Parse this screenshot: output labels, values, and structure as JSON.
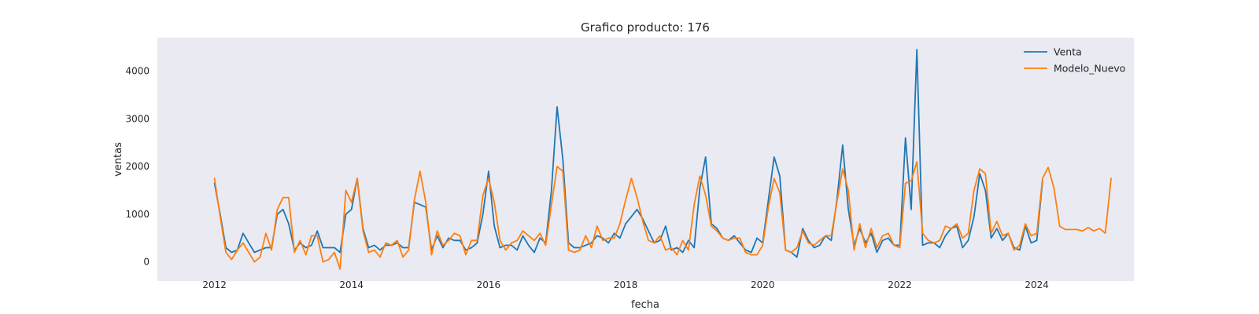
{
  "chart_data": {
    "type": "line",
    "title": "Grafico producto: 176",
    "xlabel": "fecha",
    "ylabel": "ventas",
    "xlim": [
      "2011-03",
      "2025-06"
    ],
    "ylim": [
      -400,
      4700
    ],
    "x_ticks": [
      "2012",
      "2014",
      "2016",
      "2018",
      "2020",
      "2022",
      "2024"
    ],
    "y_ticks": [
      0,
      1000,
      2000,
      3000,
      4000
    ],
    "grid": false,
    "legend_position": "top-right",
    "background": "#eaeaf2",
    "series": [
      {
        "name": "Venta",
        "color": "#1f77b4",
        "start": "2012-01",
        "values": [
          1650,
          1000,
          300,
          200,
          250,
          600,
          400,
          200,
          250,
          300,
          300,
          1000,
          1100,
          800,
          250,
          400,
          300,
          350,
          650,
          300,
          300,
          300,
          200,
          1000,
          1100,
          1750,
          700,
          300,
          350,
          250,
          350,
          350,
          400,
          300,
          300,
          1250,
          1200,
          1150,
          250,
          550,
          300,
          500,
          450,
          450,
          250,
          300,
          400,
          1000,
          1900,
          750,
          300,
          350,
          350,
          250,
          550,
          350,
          200,
          500,
          400,
          1500,
          3250,
          2150,
          400,
          300,
          300,
          350,
          400,
          550,
          500,
          400,
          600,
          500,
          800,
          950,
          1100,
          900,
          650,
          400,
          450,
          750,
          250,
          300,
          200,
          450,
          300,
          1550,
          2200,
          800,
          700,
          500,
          450,
          550,
          400,
          250,
          200,
          500,
          400,
          1300,
          2200,
          1800,
          250,
          200,
          100,
          700,
          450,
          300,
          350,
          550,
          450,
          1300,
          2450,
          1100,
          350,
          700,
          400,
          600,
          200,
          450,
          500,
          350,
          350,
          2600,
          1100,
          4450,
          350,
          400,
          400,
          300,
          550,
          700,
          750,
          300,
          450,
          950,
          1850,
          1500,
          500,
          700,
          450,
          600,
          300,
          250,
          750,
          400,
          450,
          1700
        ]
      },
      {
        "name": "Modelo_Nuevo",
        "color": "#ff7f0e",
        "start": "2012-01",
        "values": [
          1750,
          950,
          200,
          50,
          250,
          400,
          200,
          0,
          100,
          600,
          250,
          1100,
          1350,
          1350,
          200,
          450,
          150,
          550,
          550,
          0,
          50,
          200,
          -150,
          1500,
          1250,
          1750,
          650,
          200,
          250,
          100,
          400,
          350,
          450,
          100,
          250,
          1300,
          1900,
          1250,
          150,
          650,
          350,
          450,
          600,
          550,
          150,
          450,
          450,
          1400,
          1750,
          1250,
          450,
          250,
          400,
          450,
          650,
          550,
          450,
          600,
          350,
          1200,
          2000,
          1900,
          250,
          200,
          250,
          550,
          300,
          750,
          450,
          500,
          500,
          800,
          1300,
          1750,
          1350,
          850,
          450,
          400,
          550,
          250,
          300,
          150,
          450,
          250,
          1200,
          1800,
          1400,
          750,
          650,
          500,
          450,
          500,
          500,
          200,
          150,
          150,
          350,
          1150,
          1750,
          1450,
          250,
          200,
          300,
          650,
          400,
          350,
          450,
          550,
          550,
          1250,
          1950,
          1500,
          250,
          800,
          300,
          700,
          300,
          550,
          600,
          350,
          300,
          1650,
          1700,
          2100,
          600,
          450,
          400,
          450,
          750,
          700,
          800,
          500,
          600,
          1500,
          1950,
          1850,
          600,
          850,
          550,
          600,
          250,
          350,
          800,
          550,
          600,
          1750,
          1980,
          1550,
          750,
          680,
          680,
          680,
          650,
          720,
          650,
          700,
          600,
          1750
        ]
      }
    ]
  }
}
